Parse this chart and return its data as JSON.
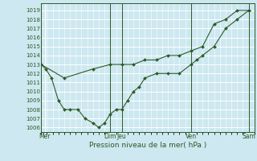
{
  "xlabel": "Pression niveau de la mer( hPa )",
  "ylim": [
    1005.5,
    1019.8
  ],
  "yticks": [
    1006,
    1007,
    1008,
    1009,
    1010,
    1011,
    1012,
    1013,
    1014,
    1015,
    1016,
    1017,
    1018,
    1019
  ],
  "bg_color": "#cde8f0",
  "line_color": "#2d5a27",
  "grid_color": "#ffffff",
  "xlim": [
    0,
    18.5
  ],
  "day_lines": [
    0,
    6,
    7,
    13,
    18
  ],
  "xtick_pos": [
    0.3,
    6.0,
    7.0,
    13.0,
    18.0
  ],
  "xtick_lab": [
    "Mer",
    "Dim",
    "Jeu",
    "Ven",
    "Sam"
  ],
  "line1_x": [
    0,
    0.4,
    0.9,
    1.5,
    2.0,
    2.5,
    3.2,
    3.8,
    4.5,
    5.0,
    5.5,
    6.0,
    6.5,
    7.0,
    7.5,
    8.0,
    8.5,
    9.0,
    10.0,
    11.0,
    12.0,
    13.0,
    13.5,
    14.0,
    15.0,
    16.0,
    17.0,
    18.0
  ],
  "line1_y": [
    1013,
    1012.5,
    1011.5,
    1009,
    1008,
    1008,
    1008,
    1007,
    1006.5,
    1006,
    1006.5,
    1007.5,
    1008,
    1008,
    1009,
    1010,
    1010.5,
    1011.5,
    1012,
    1012,
    1012,
    1013,
    1013.5,
    1014,
    1015,
    1017,
    1018,
    1019
  ],
  "line2_x": [
    0,
    2.0,
    4.5,
    6.0,
    7.0,
    8.0,
    9.0,
    10.0,
    11.0,
    12.0,
    13.0,
    14.0,
    15.0,
    16.0,
    17.0,
    18.0
  ],
  "line2_y": [
    1013,
    1011.5,
    1012.5,
    1013,
    1013,
    1013,
    1013.5,
    1013.5,
    1014,
    1014,
    1014.5,
    1015,
    1017.5,
    1018,
    1019,
    1019
  ]
}
